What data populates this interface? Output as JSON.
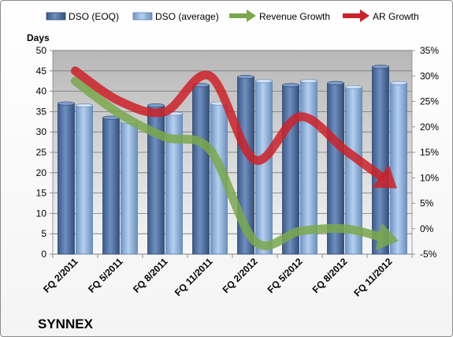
{
  "chart_data": {
    "type": "bar",
    "title": "SYNNEX",
    "ylabel": "Days",
    "y2label": "",
    "ylim": [
      0,
      50
    ],
    "yticks": [
      "0",
      "5",
      "10",
      "15",
      "20",
      "25",
      "30",
      "35",
      "40",
      "45",
      "50"
    ],
    "y2lim": [
      -5,
      35
    ],
    "y2ticks": [
      "-5%",
      "0%",
      "5%",
      "10%",
      "15%",
      "20%",
      "25%",
      "30%",
      "35%"
    ],
    "categories": [
      "FQ 2/2011",
      "FQ 5/2011",
      "FQ 8/2011",
      "FQ 11/2011",
      "FQ 2/2012",
      "FQ 5/2012",
      "FQ 8/2012",
      "FQ 11/2012"
    ],
    "series": [
      {
        "name": "DSO (EOQ)",
        "kind": "bar",
        "axis": "left",
        "color": "#4a6a99",
        "values": [
          37,
          33.5,
          36.5,
          41.5,
          43.5,
          41.5,
          42,
          46
        ]
      },
      {
        "name": "DSO (average)",
        "kind": "bar",
        "axis": "left",
        "color": "#8eb1da",
        "values": [
          36.5,
          32.5,
          34.5,
          37,
          42.5,
          42.5,
          41,
          42
        ]
      },
      {
        "name": "Revenue Growth",
        "kind": "arrow",
        "axis": "right",
        "color": "#7aa84c",
        "values": [
          29,
          22.5,
          18,
          15.5,
          -2.5,
          -0.5,
          0,
          -2
        ]
      },
      {
        "name": "AR Growth",
        "kind": "arrow",
        "axis": "right",
        "color": "#cc2128",
        "values": [
          31,
          25,
          23,
          30,
          13.5,
          22,
          15.5,
          9
        ]
      }
    ],
    "grid": true,
    "legend": "top"
  }
}
